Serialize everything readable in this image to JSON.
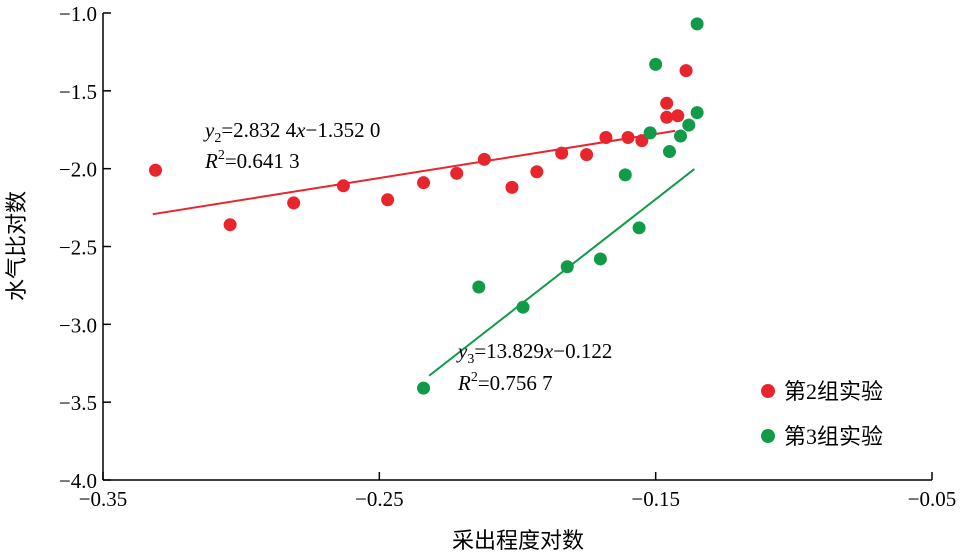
{
  "chart_data": {
    "type": "scatter",
    "xlabel": "采出程度对数",
    "ylabel": "水气比对数",
    "xlim": [
      -0.35,
      -0.05
    ],
    "ylim": [
      -4.0,
      -1.0
    ],
    "x_ticks": [
      -0.35,
      -0.25,
      -0.15,
      -0.05
    ],
    "x_tick_labels": [
      "−0.35",
      "−0.25",
      "−0.15",
      "−0.05"
    ],
    "y_ticks": [
      -1.0,
      -1.5,
      -2.0,
      -2.5,
      -3.0,
      -3.5,
      -4.0
    ],
    "y_tick_labels": [
      "−1.0",
      "−1.5",
      "−2.0",
      "−2.5",
      "−3.0",
      "−3.5",
      "−4.0"
    ],
    "grid": false,
    "legend_position": "bottom-right",
    "series": [
      {
        "name": "第2组实验",
        "color": "#e8242c",
        "points": [
          [
            -0.331,
            -2.01
          ],
          [
            -0.304,
            -2.36
          ],
          [
            -0.281,
            -2.22
          ],
          [
            -0.263,
            -2.11
          ],
          [
            -0.247,
            -2.2
          ],
          [
            -0.234,
            -2.09
          ],
          [
            -0.222,
            -2.03
          ],
          [
            -0.212,
            -1.94
          ],
          [
            -0.202,
            -2.12
          ],
          [
            -0.193,
            -2.02
          ],
          [
            -0.184,
            -1.9
          ],
          [
            -0.175,
            -1.91
          ],
          [
            -0.168,
            -1.8
          ],
          [
            -0.16,
            -1.8
          ],
          [
            -0.155,
            -1.82
          ],
          [
            -0.146,
            -1.58
          ],
          [
            -0.146,
            -1.67
          ],
          [
            -0.142,
            -1.66
          ],
          [
            -0.139,
            -1.37
          ]
        ],
        "fit": {
          "x_range": [
            -0.332,
            -0.143
          ],
          "slope": 2.8324,
          "intercept": -1.352,
          "equation_var": "y",
          "equation_sub": "2",
          "equation_rest": "=2.832 4",
          "equation_x": "x",
          "equation_tail": "−1.352 0",
          "r2_label": "R",
          "r2_sup": "2",
          "r2_value": "=0.641 3"
        }
      },
      {
        "name": "第3组实验",
        "color": "#119a48",
        "points": [
          [
            -0.234,
            -3.41
          ],
          [
            -0.214,
            -2.76
          ],
          [
            -0.198,
            -2.89
          ],
          [
            -0.182,
            -2.63
          ],
          [
            -0.17,
            -2.58
          ],
          [
            -0.161,
            -2.04
          ],
          [
            -0.156,
            -2.38
          ],
          [
            -0.152,
            -1.77
          ],
          [
            -0.15,
            -1.33
          ],
          [
            -0.145,
            -1.89
          ],
          [
            -0.141,
            -1.79
          ],
          [
            -0.138,
            -1.72
          ],
          [
            -0.135,
            -1.64
          ],
          [
            -0.135,
            -1.07
          ]
        ],
        "fit": {
          "x_range": [
            -0.232,
            -0.136
          ],
          "slope": 13.829,
          "intercept": -0.122,
          "equation_var": "y",
          "equation_sub": "3",
          "equation_rest": "=13.829",
          "equation_x": "x",
          "equation_tail": "−0.122",
          "r2_label": "R",
          "r2_sup": "2",
          "r2_value": "=0.756 7"
        }
      }
    ]
  }
}
